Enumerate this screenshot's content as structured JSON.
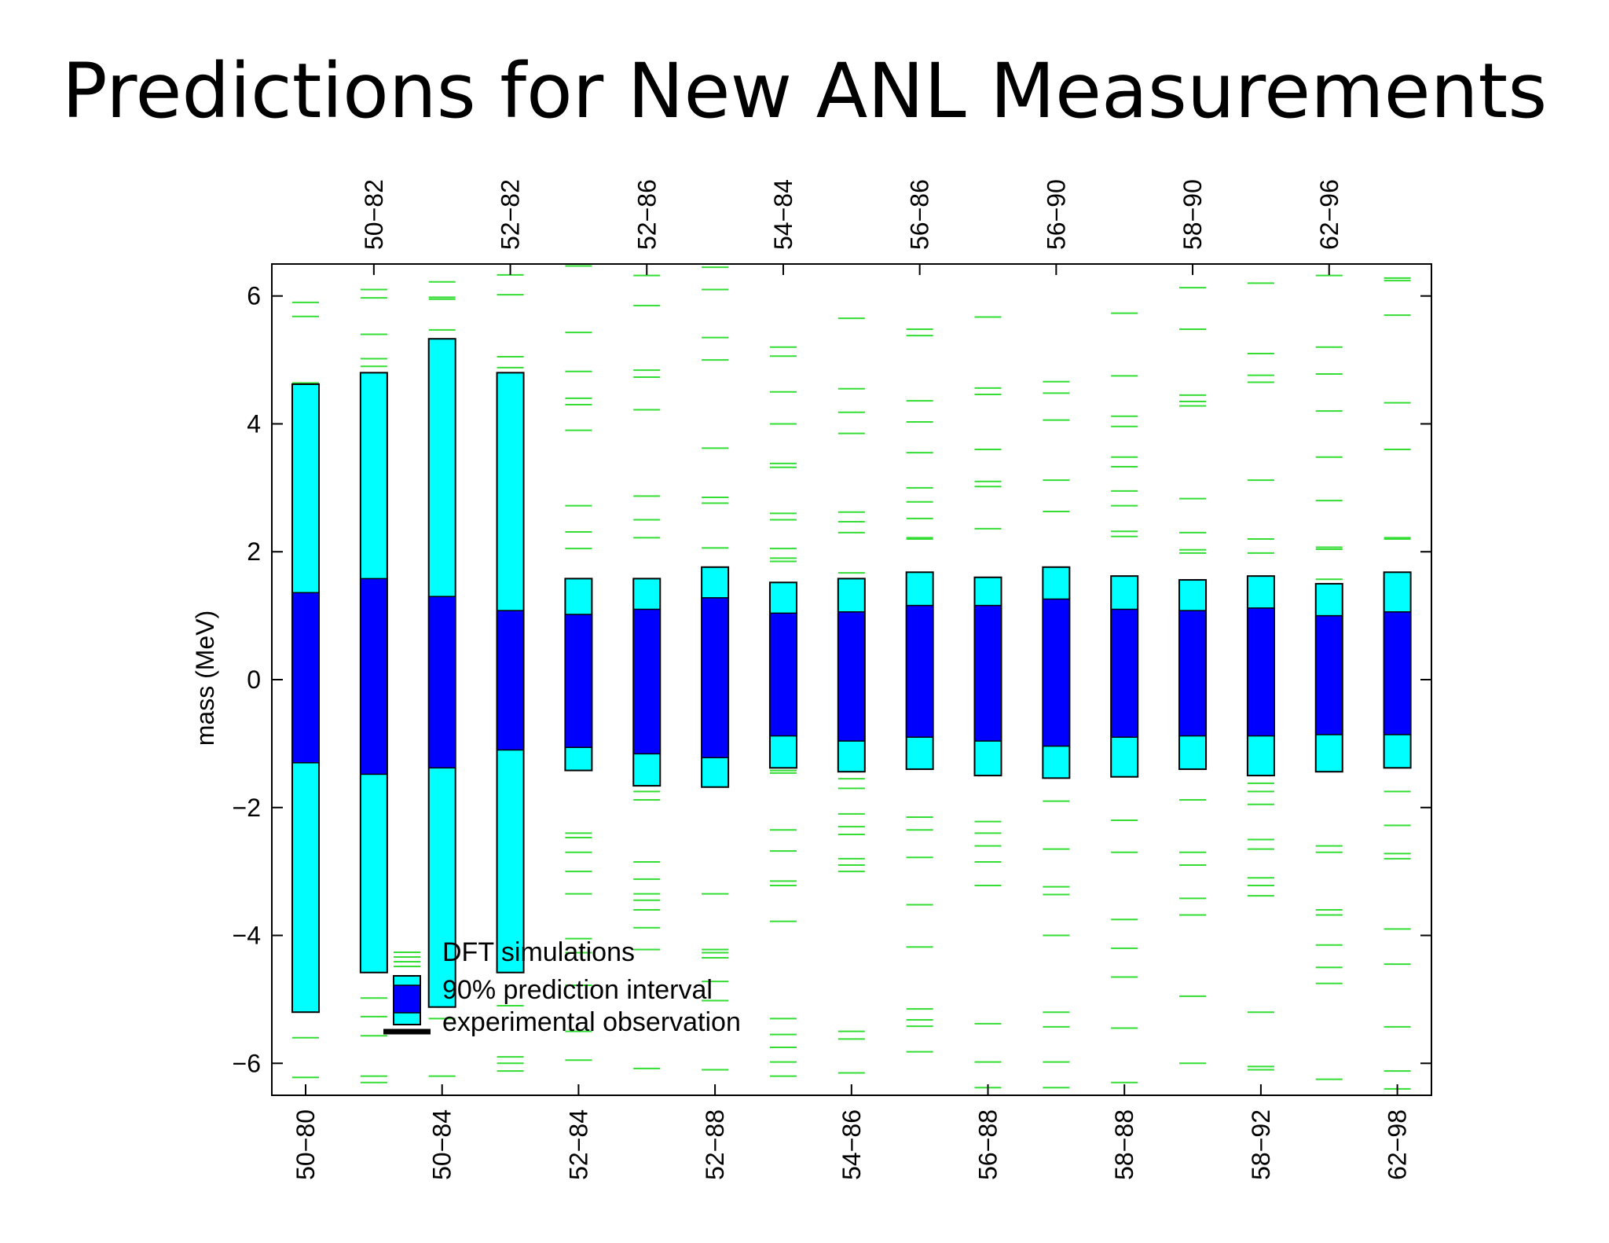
{
  "slide": {
    "title": "Predictions for New ANL Measurements"
  },
  "colors": {
    "outer_interval": "#00ffff",
    "inner_interval": "#0000ff",
    "simulations": "#33dd33",
    "observation": "#000000",
    "frame": "#000000"
  },
  "chart_data": {
    "type": "box",
    "title": "",
    "ylabel": "mass (MeV)",
    "xlabel": "",
    "ylim": [
      -6.5,
      6.5
    ],
    "yticks": [
      -6,
      -4,
      -2,
      0,
      2,
      4,
      6
    ],
    "ytick_labels": [
      "−6",
      "−4",
      "−2",
      "0",
      "2",
      "4",
      "6"
    ],
    "bottom_tick_labels": [
      "50−80",
      "50−84",
      "52−84",
      "52−88",
      "54−86",
      "56−88",
      "58−88",
      "58−92",
      "62−98"
    ],
    "top_tick_labels": [
      "50−82",
      "52−82",
      "52−86",
      "54−84",
      "56−86",
      "56−90",
      "58−90",
      "62−96"
    ],
    "grid": false,
    "legend": {
      "placement": "bottom-left",
      "entries": [
        "DFT simulations",
        "90% prediction interval",
        "experimental observation"
      ]
    },
    "series": [
      {
        "outer": [
          -5.2,
          4.62
        ],
        "inner": [
          -1.3,
          1.36
        ],
        "sims": [
          5.9,
          5.68,
          4.64,
          4.6,
          -5.6,
          -6.22
        ]
      },
      {
        "outer": [
          -4.58,
          4.8
        ],
        "inner": [
          -1.48,
          1.58
        ],
        "sims": [
          6.1,
          5.97,
          5.4,
          5.02,
          4.9,
          -4.98,
          -5.27,
          -5.57,
          -6.2,
          -6.3
        ]
      },
      {
        "outer": [
          -5.12,
          5.33
        ],
        "inner": [
          -1.38,
          1.3
        ],
        "sims": [
          6.22,
          5.98,
          5.95,
          5.47,
          -4.3,
          -4.42,
          -4.5,
          -4.55,
          -4.72,
          -4.9,
          -5.3,
          -6.2
        ]
      },
      {
        "outer": [
          -4.58,
          4.8
        ],
        "inner": [
          -1.1,
          1.08
        ],
        "sims": [
          6.33,
          6.02,
          5.05,
          4.88,
          -5.1,
          -5.9,
          -6.0,
          -6.12
        ]
      },
      {
        "outer": [
          -1.42,
          1.58
        ],
        "inner": [
          -1.06,
          1.02
        ],
        "sims": [
          6.47,
          5.43,
          4.82,
          4.4,
          4.3,
          3.9,
          2.72,
          2.31,
          2.05,
          -2.4,
          -2.47,
          -2.7,
          -3.0,
          -3.35,
          -4.05,
          -4.27,
          -4.78,
          -5.5,
          -5.95
        ]
      },
      {
        "outer": [
          -1.66,
          1.58
        ],
        "inner": [
          -1.16,
          1.1
        ],
        "sims": [
          6.32,
          5.85,
          4.84,
          4.73,
          4.22,
          2.87,
          2.5,
          2.22,
          -1.75,
          -1.88,
          -2.85,
          -3.12,
          -3.35,
          -3.45,
          -3.6,
          -3.88,
          -4.22,
          -6.08
        ]
      },
      {
        "outer": [
          -1.68,
          1.76
        ],
        "inner": [
          -1.22,
          1.28
        ],
        "sims": [
          6.45,
          6.1,
          5.35,
          5.0,
          3.62,
          2.85,
          2.76,
          2.06,
          -3.35,
          -4.22,
          -4.27,
          -4.35,
          -4.72,
          -5.02,
          -6.1
        ]
      },
      {
        "outer": [
          -1.38,
          1.52
        ],
        "inner": [
          -0.88,
          1.04
        ],
        "sims": [
          5.2,
          5.06,
          4.5,
          4.0,
          3.38,
          3.32,
          2.6,
          2.5,
          2.05,
          1.9,
          1.85,
          -1.42,
          -1.46,
          -2.35,
          -2.68,
          -3.15,
          -3.22,
          -3.78,
          -5.3,
          -5.55,
          -5.75,
          -5.98,
          -6.2
        ]
      },
      {
        "outer": [
          -1.44,
          1.58
        ],
        "inner": [
          -0.96,
          1.06
        ],
        "sims": [
          5.65,
          4.55,
          4.18,
          3.85,
          2.62,
          2.47,
          2.3,
          1.67,
          -1.55,
          -1.7,
          -2.1,
          -2.3,
          -2.42,
          -2.8,
          -2.9,
          -3.0,
          -5.5,
          -5.62,
          -6.15
        ]
      },
      {
        "outer": [
          -1.4,
          1.68
        ],
        "inner": [
          -0.9,
          1.16
        ],
        "sims": [
          5.48,
          5.38,
          4.36,
          4.03,
          3.55,
          3.0,
          2.78,
          2.52,
          2.22,
          2.2,
          -2.15,
          -2.35,
          -2.78,
          -3.52,
          -4.18,
          -5.15,
          -5.32,
          -5.42,
          -5.82
        ]
      },
      {
        "outer": [
          -1.5,
          1.6
        ],
        "inner": [
          -0.96,
          1.16
        ],
        "sims": [
          5.67,
          4.56,
          4.46,
          3.6,
          3.1,
          3.02,
          2.36,
          -2.22,
          -2.4,
          -2.6,
          -2.85,
          -3.22,
          -5.38,
          -5.98,
          -6.38
        ]
      },
      {
        "outer": [
          -1.54,
          1.76
        ],
        "inner": [
          -1.04,
          1.26
        ],
        "sims": [
          4.66,
          4.48,
          4.06,
          3.12,
          2.63,
          -1.9,
          -2.65,
          -3.24,
          -3.36,
          -4.0,
          -5.2,
          -5.43,
          -5.98,
          -6.38
        ]
      },
      {
        "outer": [
          -1.52,
          1.62
        ],
        "inner": [
          -0.9,
          1.1
        ],
        "sims": [
          5.73,
          4.75,
          4.12,
          3.96,
          3.48,
          3.33,
          2.95,
          2.72,
          2.32,
          2.24,
          -2.2,
          -2.7,
          -3.75,
          -4.2,
          -4.65,
          -5.45,
          -6.3
        ]
      },
      {
        "outer": [
          -1.4,
          1.56
        ],
        "inner": [
          -0.88,
          1.08
        ],
        "sims": [
          6.13,
          5.48,
          4.45,
          4.35,
          4.28,
          2.83,
          2.3,
          2.03,
          1.98,
          -1.88,
          -2.7,
          -2.9,
          -3.42,
          -3.68,
          -4.95,
          -6.0
        ]
      },
      {
        "outer": [
          -1.5,
          1.62
        ],
        "inner": [
          -0.88,
          1.12
        ],
        "sims": [
          6.2,
          5.1,
          4.76,
          4.65,
          3.12,
          2.2,
          1.98,
          -1.62,
          -1.75,
          -1.95,
          -2.5,
          -2.65,
          -3.1,
          -3.22,
          -3.38,
          -5.2,
          -6.05,
          -6.1
        ]
      },
      {
        "outer": [
          -1.44,
          1.5
        ],
        "inner": [
          -0.86,
          1.0
        ],
        "sims": [
          6.32,
          5.2,
          4.78,
          4.2,
          3.48,
          2.8,
          2.07,
          2.04,
          1.57,
          -2.6,
          -2.7,
          -3.6,
          -3.68,
          -4.15,
          -4.5,
          -4.75,
          -6.25
        ]
      },
      {
        "outer": [
          -1.38,
          1.68
        ],
        "inner": [
          -0.86,
          1.06
        ],
        "sims": [
          6.28,
          6.24,
          5.7,
          4.33,
          3.6,
          2.22,
          2.2,
          -1.75,
          -2.28,
          -2.72,
          -2.8,
          -3.9,
          -4.45,
          -5.43,
          -6.12,
          -6.4
        ]
      }
    ]
  }
}
